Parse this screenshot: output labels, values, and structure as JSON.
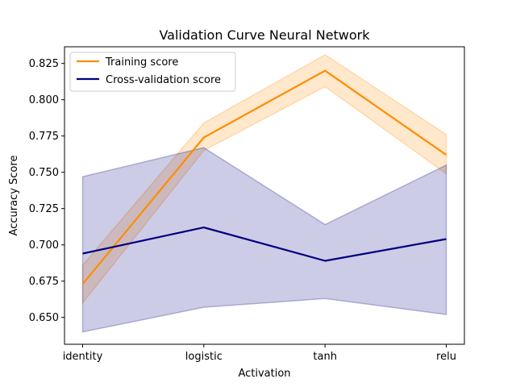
{
  "chart_data": {
    "type": "line",
    "title": "Validation Curve Neural Network",
    "xlabel": "Activation",
    "ylabel": "Accuracy Score",
    "categories": [
      "identity",
      "logistic",
      "tanh",
      "relu"
    ],
    "ylim": [
      0.6315,
      0.8365
    ],
    "yticks": [
      0.65,
      0.675,
      0.7,
      0.725,
      0.75,
      0.775,
      0.8,
      0.825
    ],
    "ytick_labels": [
      "0.650",
      "0.675",
      "0.700",
      "0.725",
      "0.750",
      "0.775",
      "0.800",
      "0.825"
    ],
    "grid": false,
    "legend_position": "top-left",
    "series": [
      {
        "name": "Training score",
        "color": "#ff8c00",
        "values": [
          0.673,
          0.774,
          0.82,
          0.762
        ],
        "band_upper": [
          0.686,
          0.784,
          0.831,
          0.776
        ],
        "band_lower": [
          0.66,
          0.765,
          0.809,
          0.749
        ]
      },
      {
        "name": "Cross-validation score",
        "color": "#000080",
        "values": [
          0.694,
          0.712,
          0.689,
          0.704
        ],
        "band_upper": [
          0.747,
          0.767,
          0.714,
          0.755
        ],
        "band_lower": [
          0.64,
          0.657,
          0.663,
          0.652
        ]
      }
    ]
  }
}
